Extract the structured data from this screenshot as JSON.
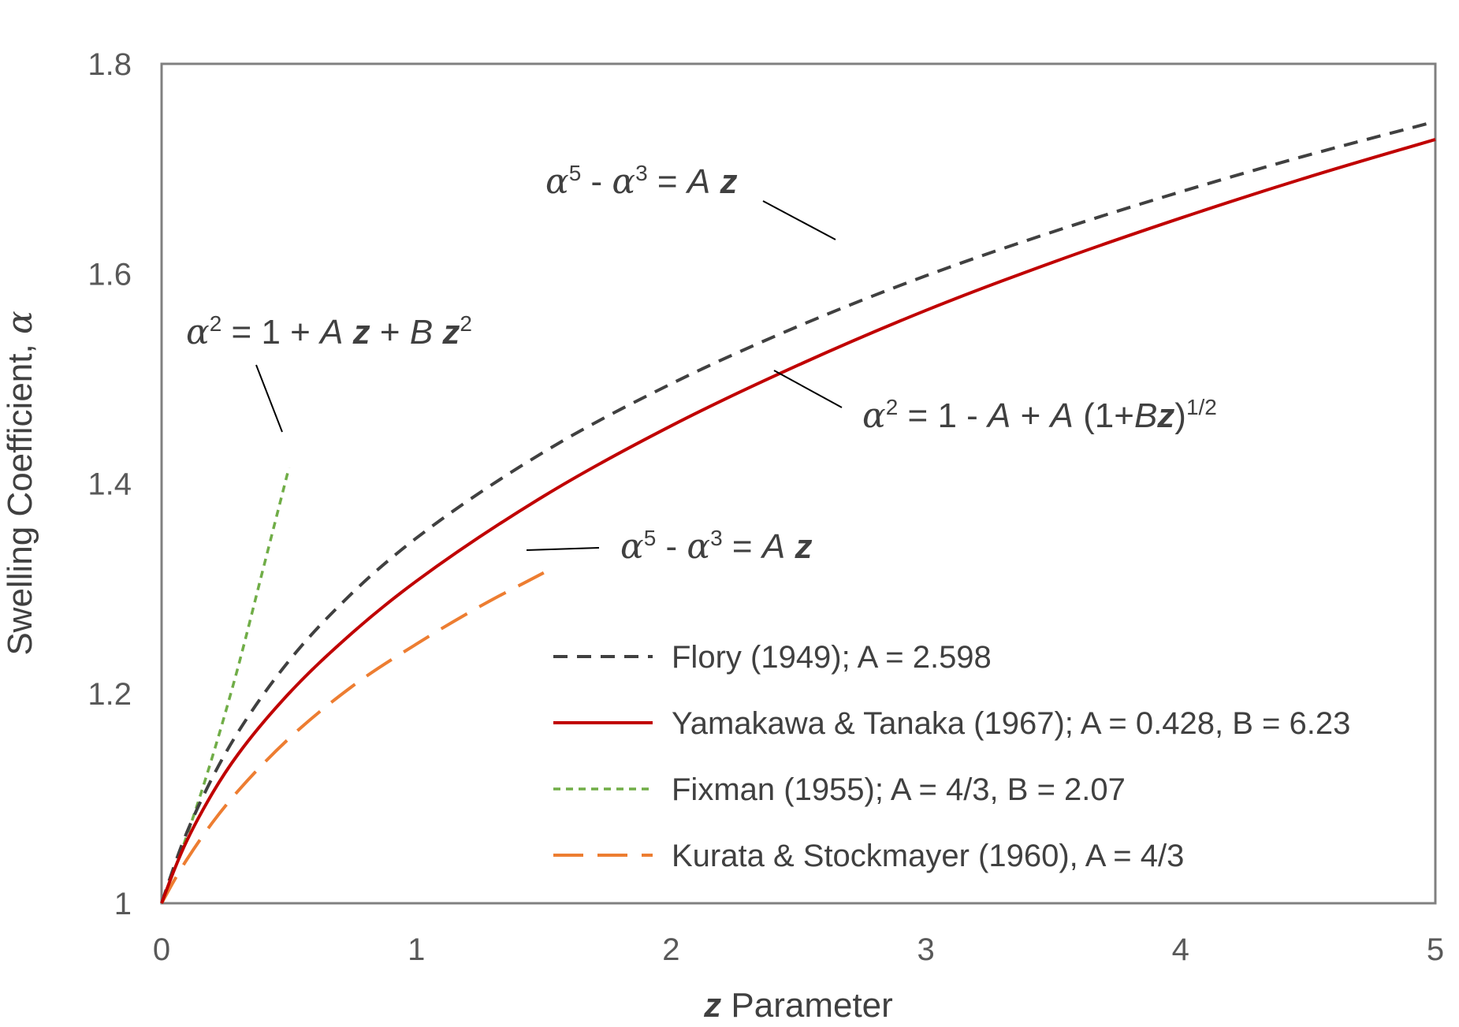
{
  "chart_data": {
    "type": "line",
    "xlabel": "z Parameter",
    "xlabel_parts": {
      "var": "z",
      "rest": " Parameter"
    },
    "ylabel": "Swelling Coefficient, α",
    "ylabel_parts": {
      "text": "Swelling Coefficient, ",
      "var": "α"
    },
    "xlim": [
      0,
      5
    ],
    "ylim": [
      1,
      1.8
    ],
    "x_ticks": [
      "0",
      "1",
      "2",
      "3",
      "4",
      "5"
    ],
    "y_ticks": [
      "1",
      "1.2",
      "1.4",
      "1.6",
      "1.8"
    ],
    "grid": false,
    "legend_position": "bottom-right",
    "series": [
      {
        "name": "Flory (1949); A = 2.598",
        "color": "#404040",
        "style": "short-dash",
        "x": [
          0,
          0.05,
          0.1,
          0.2,
          0.3,
          0.5,
          0.75,
          1,
          1.5,
          2,
          2.5,
          3,
          3.5,
          4,
          4.5,
          5
        ],
        "y": [
          1,
          1.036,
          1.068,
          1.12,
          1.163,
          1.231,
          1.296,
          1.348,
          1.43,
          1.495,
          1.55,
          1.598,
          1.64,
          1.678,
          1.713,
          1.745
        ]
      },
      {
        "name": "Yamakawa & Tanaka (1967); A = 0.428, B = 6.23",
        "color": "#c00000",
        "style": "solid",
        "x": [
          0,
          0.05,
          0.1,
          0.2,
          0.3,
          0.5,
          0.75,
          1,
          1.5,
          2,
          2.5,
          3,
          3.5,
          4,
          4.5,
          5
        ],
        "y": [
          1,
          1.032,
          1.06,
          1.105,
          1.142,
          1.2,
          1.258,
          1.307,
          1.388,
          1.455,
          1.513,
          1.565,
          1.611,
          1.653,
          1.692,
          1.728
        ]
      },
      {
        "name": "Fixman (1955); A = 4/3, B = 2.07",
        "color": "#70ad47",
        "style": "dot-dash",
        "x": [
          0,
          0.1,
          0.2,
          0.3,
          0.4,
          0.5
        ],
        "y": [
          1,
          1.065,
          1.14,
          1.225,
          1.32,
          1.415
        ]
      },
      {
        "name": "Kurata & Stockmayer (1960), A = 4/3",
        "color": "#ed7d31",
        "style": "long-dash",
        "x": [
          0,
          0.05,
          0.1,
          0.2,
          0.3,
          0.5,
          0.75,
          1,
          1.25,
          1.5
        ],
        "y": [
          1,
          1.022,
          1.042,
          1.077,
          1.107,
          1.157,
          1.207,
          1.247,
          1.283,
          1.315
        ]
      }
    ],
    "annotations": {
      "fixman": {
        "alpha": "α",
        "exp1": "2",
        "t1": " = 1 + ",
        "A": "A",
        "z1": "z",
        "t2": " + ",
        "B": "B",
        "z2": "z",
        "exp2": "2"
      },
      "flory": {
        "alpha1": "α",
        "exp1": "5",
        "t1": " - ",
        "alpha2": "α",
        "exp2": "3",
        "t2": "  = ",
        "A": "A",
        "z": "z"
      },
      "yamakawa": {
        "alpha": "α",
        "exp1": "2",
        "t1": " = 1 - ",
        "A1": "A",
        "t2": " + ",
        "A2": "A",
        "t3": " (1+",
        "B": "B",
        "z": "z",
        "t4": ")",
        "exp2": "1/2"
      },
      "kurata": {
        "alpha1": "α",
        "exp1": "5",
        "t1": " - ",
        "alpha2": "α",
        "exp2": "3",
        "t2": "  = ",
        "A": "A",
        "z": "z"
      }
    }
  }
}
